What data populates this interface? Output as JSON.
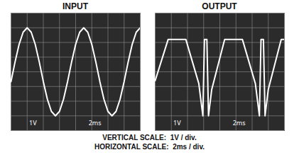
{
  "chart_data": [
    {
      "type": "line",
      "title": "INPUT",
      "color": "#ffffff",
      "x": [
        0,
        0.5,
        1,
        1.5,
        2,
        2.5,
        3,
        3.5,
        4,
        4.5,
        5,
        5.5,
        6,
        6.5,
        7,
        7.5,
        8,
        8.5,
        9,
        9.5,
        10,
        10.5,
        11,
        11.5,
        12,
        12.5,
        13,
        13.5,
        14,
        14.5,
        15,
        15.5,
        16
      ],
      "values": [
        -0.67,
        0.67,
        1.87,
        2.7,
        3.0,
        2.7,
        1.87,
        0.67,
        -0.67,
        -1.87,
        -2.7,
        -3.0,
        -2.7,
        -1.87,
        -0.67,
        0.67,
        1.87,
        2.7,
        3.0,
        2.7,
        1.87,
        0.67,
        -0.67,
        -1.87,
        -2.7,
        -3.0,
        -2.7,
        -1.87,
        -0.67,
        0.67,
        1.87,
        2.7,
        3.0
      ],
      "xlim": [
        0,
        16
      ],
      "ylim": [
        -4,
        4
      ],
      "xticks": [
        0,
        2,
        4,
        6,
        8,
        10,
        12,
        14,
        16
      ],
      "yticks": [
        -4,
        -3,
        -2,
        -1,
        0,
        1,
        2,
        3,
        4
      ],
      "grid": true,
      "tick_labels": false,
      "annotations": [
        "1V",
        "2ms"
      ]
    },
    {
      "type": "line",
      "title": "OUTPUT",
      "color": "#ffffff",
      "x": [
        0,
        1.6,
        3.8,
        5.4,
        5.9,
        6.1,
        6.4,
        6.6,
        7.0,
        8.6,
        10.8,
        12.4,
        12.9,
        13.1,
        13.4,
        13.6,
        14.0,
        15.6,
        16
      ],
      "values": [
        -0.6,
        2.2,
        2.2,
        -0.8,
        -3.0,
        2.2,
        2.2,
        -3.0,
        -1.2,
        2.2,
        2.2,
        -0.8,
        -3.0,
        2.2,
        2.2,
        -3.0,
        -1.2,
        2.2,
        2.2
      ],
      "xlim": [
        0,
        16
      ],
      "ylim": [
        -4,
        4
      ],
      "xticks": [
        0,
        2,
        4,
        6,
        8,
        10,
        12,
        14,
        16
      ],
      "yticks": [
        -4,
        -3,
        -2,
        -1,
        0,
        1,
        2,
        3,
        4
      ],
      "grid": true,
      "tick_labels": false,
      "annotations": [
        "1V",
        "2ms"
      ]
    }
  ],
  "footer": [
    "VERTICAL SCALE:  1V / div.",
    "HORIZONTAL SCALE:  2ms / div."
  ]
}
